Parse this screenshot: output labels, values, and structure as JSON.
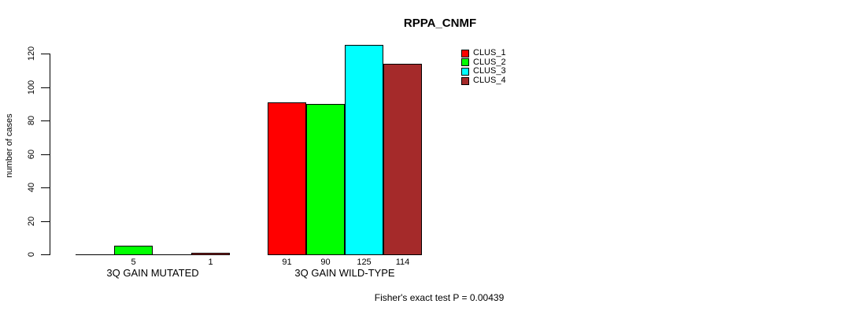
{
  "chart_data": {
    "type": "bar",
    "title": "RPPA_CNMF",
    "xlabel": "",
    "ylabel": "number of cases",
    "ylim": [
      0,
      120
    ],
    "yticks": [
      0,
      20,
      40,
      60,
      80,
      100,
      120
    ],
    "grid": false,
    "legend_position": "top-right",
    "categories": [
      "3Q GAIN MUTATED",
      "3Q GAIN WILD-TYPE"
    ],
    "series": [
      {
        "name": "CLUS_1",
        "color": "#FF0000",
        "values": [
          0,
          91
        ]
      },
      {
        "name": "CLUS_2",
        "color": "#00FF00",
        "values": [
          5,
          90
        ]
      },
      {
        "name": "CLUS_3",
        "color": "#00FFFF",
        "values": [
          0,
          125
        ]
      },
      {
        "name": "CLUS_4",
        "color": "#A52A2A",
        "values": [
          1,
          114
        ]
      }
    ],
    "bar_value_labels": [
      [
        "",
        "5",
        "",
        "1"
      ],
      [
        "91",
        "90",
        "125",
        "114"
      ]
    ],
    "annotation": "Fisher's exact test P = 0.00439"
  }
}
